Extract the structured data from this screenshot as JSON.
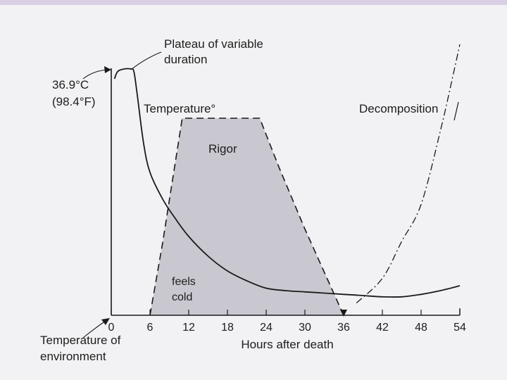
{
  "chart_data": {
    "type": "line",
    "x_ticks": [
      0,
      6,
      12,
      18,
      24,
      30,
      36,
      42,
      48,
      54
    ],
    "xlabel": "Hours after death",
    "xlim": [
      0,
      54
    ],
    "y_top_label_line1": "36.9°C",
    "y_top_label_line2": "(98.4°F)",
    "y_bottom_label_line1": "Temperature of",
    "y_bottom_label_line2": "environment",
    "grid": false,
    "series": [
      {
        "name": "Temperature°",
        "style": "solid",
        "color": "#1a1a1a",
        "points": [
          [
            0.5,
            96
          ],
          [
            1,
            99
          ],
          [
            2,
            100
          ],
          [
            3,
            100
          ],
          [
            3.5,
            99
          ],
          [
            4,
            90
          ],
          [
            5,
            70
          ],
          [
            6,
            58
          ],
          [
            8,
            47
          ],
          [
            10,
            39
          ],
          [
            12,
            32
          ],
          [
            15,
            24
          ],
          [
            18,
            18
          ],
          [
            21,
            14
          ],
          [
            24,
            11
          ],
          [
            27,
            10
          ],
          [
            30,
            9.5
          ],
          [
            33,
            9
          ],
          [
            36,
            8.5
          ],
          [
            39,
            8
          ],
          [
            42,
            7.5
          ],
          [
            45,
            7.5
          ],
          [
            48,
            8.5
          ],
          [
            51,
            10
          ],
          [
            54,
            12
          ]
        ]
      },
      {
        "name": "Rigor",
        "style": "dashed",
        "color": "#1a1a1a",
        "fill": "#c9c8d0",
        "points": [
          [
            6,
            0
          ],
          [
            8,
            30
          ],
          [
            11,
            80
          ],
          [
            23,
            80
          ],
          [
            26,
            60
          ],
          [
            30,
            35
          ],
          [
            36,
            0
          ]
        ]
      },
      {
        "name": "Decomposition",
        "style": "dashdot",
        "color": "#1a1a1a",
        "points": [
          [
            38,
            5
          ],
          [
            42,
            15
          ],
          [
            45,
            30
          ],
          [
            48,
            45
          ],
          [
            51,
            75
          ],
          [
            53,
            98
          ],
          [
            54,
            110
          ]
        ]
      }
    ],
    "annotations": {
      "plateau_line1": "Plateau of variable",
      "plateau_line2": "duration",
      "feels_cold_line1": "feels",
      "feels_cold_line2": "cold"
    }
  }
}
